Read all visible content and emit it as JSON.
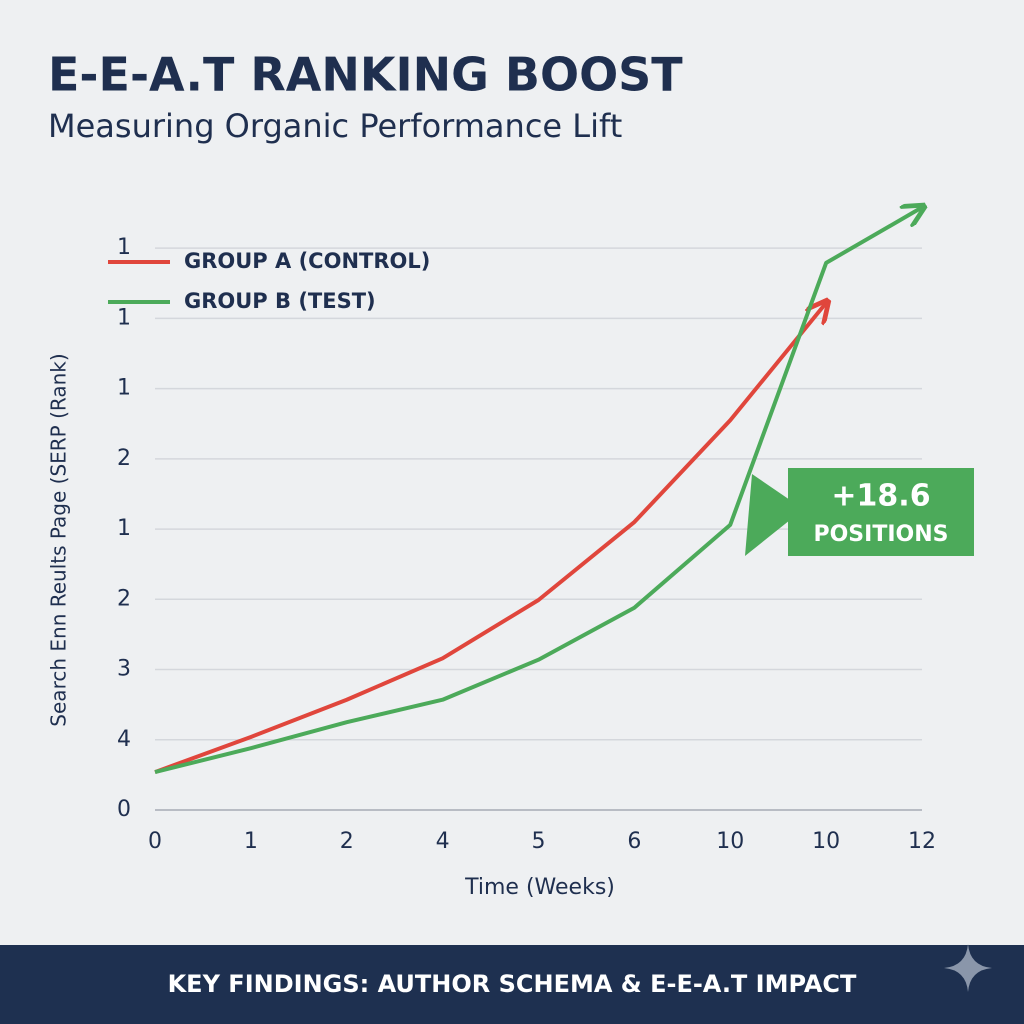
{
  "chart_data": {
    "type": "line",
    "title": "E-E-A.T RANKING BOOST",
    "subtitle": "Measuring Organic Performance Lift",
    "y_label": "Search Enn Reults Page (SERP (Rank)",
    "x_label": "Time (Weeks)",
    "categories": [
      "0",
      "1",
      "2",
      "4",
      "5",
      "6",
      "10",
      "10",
      "12"
    ],
    "series": [
      {
        "name": "GROUP A (CONTROL)",
        "color": "#e0463c",
        "values": [
          0.54,
          1.04,
          1.57,
          2.16,
          2.99,
          4.1,
          5.55,
          7.22,
          null
        ]
      },
      {
        "name": "GROUP B (TEST)",
        "color": "#4caa5a",
        "values": [
          0.54,
          0.88,
          1.25,
          1.57,
          2.14,
          2.88,
          4.06,
          7.79,
          8.58
        ]
      }
    ],
    "ylim": [
      0,
      8.6
    ],
    "yticks": [
      {
        "value": 0,
        "label": "0"
      },
      {
        "value": 1,
        "label": "4"
      },
      {
        "value": 2,
        "label": "3"
      },
      {
        "value": 3,
        "label": "2"
      },
      {
        "value": 4,
        "label": "1"
      },
      {
        "value": 5,
        "label": "2"
      },
      {
        "value": 6,
        "label": "1"
      },
      {
        "value": 7,
        "label": "1"
      },
      {
        "value": 8,
        "label": "1"
      }
    ],
    "grid": true,
    "legend": "top-left",
    "annotation": {
      "value": "+18.6",
      "text": "POSITIONS",
      "color": "#4caa5a"
    },
    "footer": "KEY FINDINGS: AUTHOR SCHEMA & E-E-A.T IMPACT"
  }
}
